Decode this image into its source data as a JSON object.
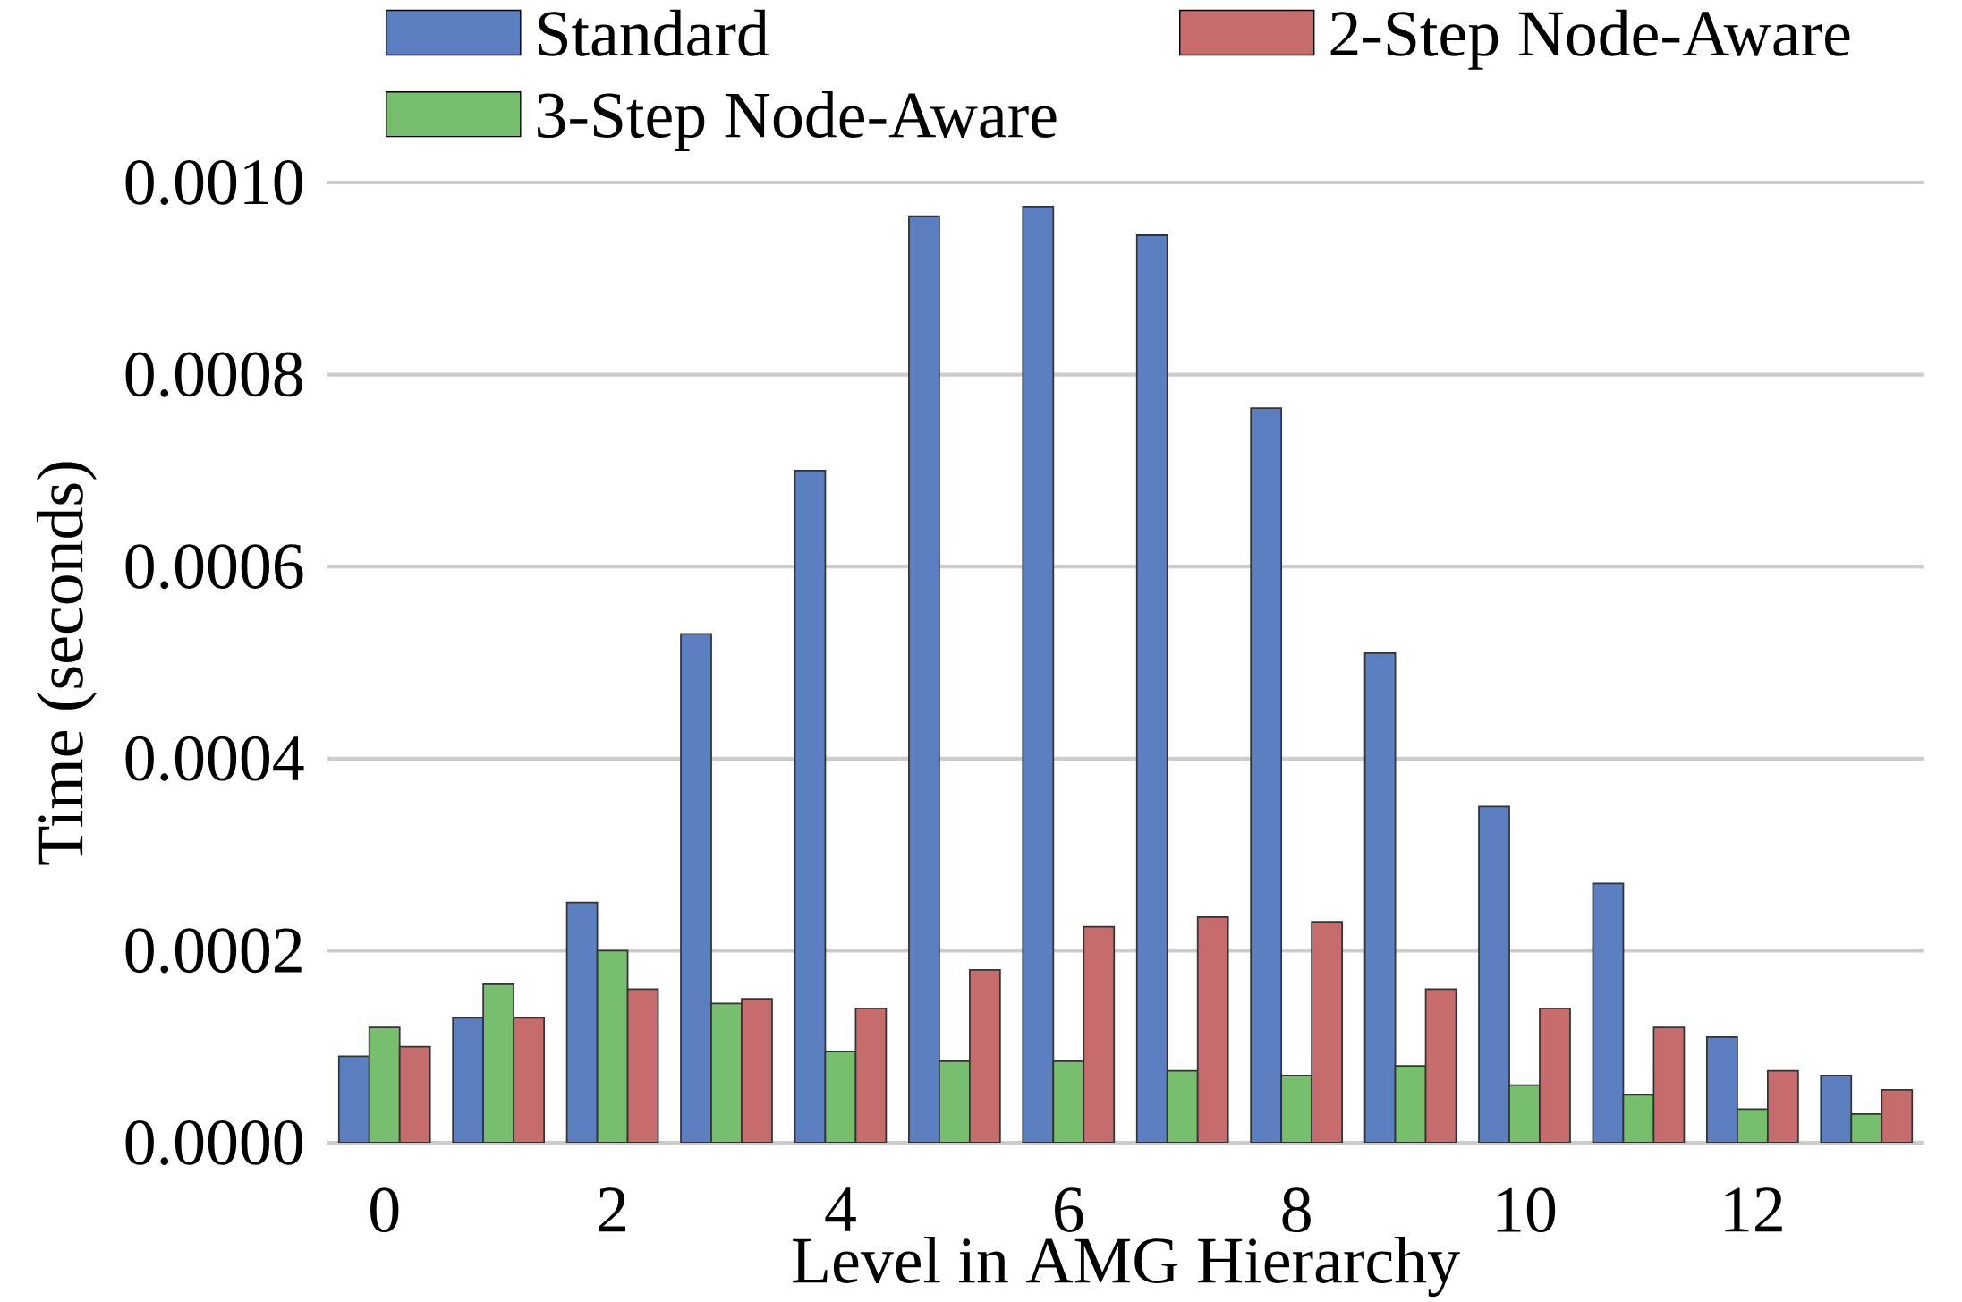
{
  "chart_data": {
    "type": "bar",
    "xlabel": "Level in AMG Hierarchy",
    "ylabel": "Time (seconds)",
    "categories": [
      "0",
      null,
      "2",
      null,
      "4",
      null,
      "6",
      null,
      "8",
      null,
      "10",
      null,
      "12",
      null
    ],
    "series": [
      {
        "name": "Standard",
        "color": "#5b7fc1",
        "values": [
          9e-05,
          0.00013,
          0.00025,
          0.00053,
          0.0007,
          0.000965,
          0.000975,
          0.000945,
          0.000765,
          0.00051,
          0.00035,
          0.00027,
          0.00011,
          7e-05
        ]
      },
      {
        "name": "3-Step Node-Aware",
        "color": "#77bf6f",
        "values": [
          0.00012,
          0.000165,
          0.0002,
          0.000145,
          9.5e-05,
          8.5e-05,
          8.5e-05,
          7.5e-05,
          7e-05,
          8e-05,
          6e-05,
          5e-05,
          3.5e-05,
          3e-05
        ]
      },
      {
        "name": "2-Step Node-Aware",
        "color": "#c66c6c",
        "values": [
          0.0001,
          0.00013,
          0.00016,
          0.00015,
          0.00014,
          0.00018,
          0.000225,
          0.000235,
          0.00023,
          0.00016,
          0.00014,
          0.00012,
          7.5e-05,
          5.5e-05
        ]
      }
    ],
    "ylim": [
      0,
      0.001
    ],
    "yticks": [
      {
        "value": 0,
        "label": "0.0000"
      },
      {
        "value": 0.0002,
        "label": "0.0002"
      },
      {
        "value": 0.0004,
        "label": "0.0004"
      },
      {
        "value": 0.0006,
        "label": "0.0006"
      },
      {
        "value": 0.0008,
        "label": "0.0008"
      },
      {
        "value": 0.001,
        "label": "0.0010"
      }
    ],
    "grid": "y",
    "legend": "top"
  }
}
